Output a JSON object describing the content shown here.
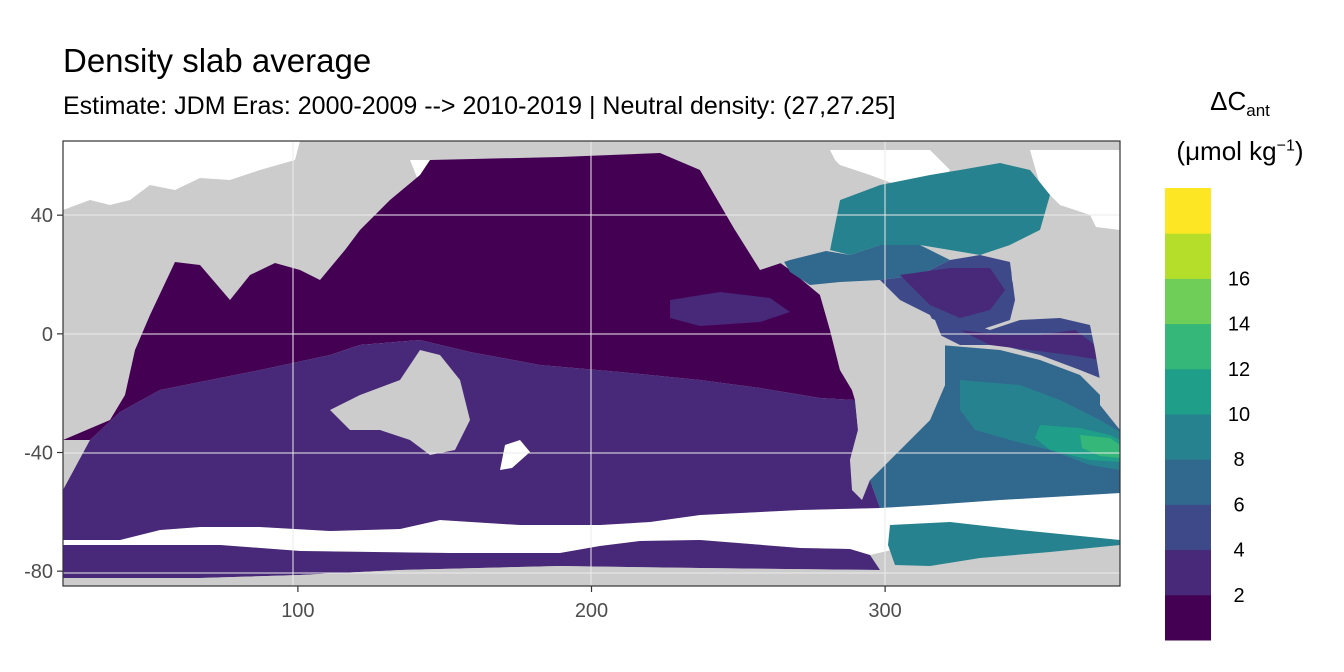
{
  "title": "Density slab average",
  "subtitle": "Estimate: JDM Eras: 2000-2009 --> 2010-2019 | Neutral density: (27,27.25]",
  "legend": {
    "title_line1_main": "ΔC",
    "title_line1_sub": "ant",
    "title_line2_pre": "(μmol kg",
    "title_line2_sup": "−1",
    "title_line2_post": ")",
    "ticks": [
      "2",
      "4",
      "6",
      "8",
      "10",
      "12",
      "14",
      "16"
    ],
    "colors": [
      "#440154",
      "#482878",
      "#3e4989",
      "#31688e",
      "#26828e",
      "#1f9e89",
      "#35b779",
      "#6ece58",
      "#b5de2b",
      "#fde725"
    ]
  },
  "axes": {
    "x_ticks": [
      100,
      200,
      300
    ],
    "y_ticks": [
      40,
      0,
      -40,
      -80
    ],
    "x_range": [
      20,
      380
    ],
    "y_range": [
      -85,
      65
    ]
  },
  "colors": {
    "land": "#cccccc",
    "missing": "#ffffff",
    "panel_border": "#333333"
  }
}
